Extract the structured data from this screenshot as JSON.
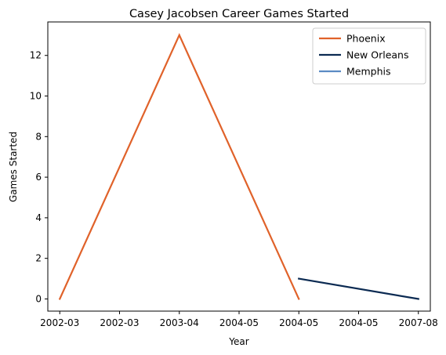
{
  "chart_data": {
    "type": "line",
    "title": "Casey Jacobsen Career Games Started",
    "xlabel": "Year",
    "ylabel": "Games Started",
    "x_tick_labels": [
      "2002-03",
      "2002-03",
      "2003-04",
      "2004-05",
      "2004-05",
      "2004-05",
      "2007-08"
    ],
    "x_range": [
      -0.2,
      6.2
    ],
    "y_range": [
      -0.6,
      13.65
    ],
    "y_ticks": [
      0,
      2,
      4,
      6,
      8,
      10,
      12
    ],
    "grid": false,
    "legend_placement": "top-right",
    "series": [
      {
        "name": "Phoenix",
        "color": "#e0622a",
        "points": [
          [
            0,
            0
          ],
          [
            2,
            13
          ],
          [
            4,
            0
          ]
        ]
      },
      {
        "name": "New Orleans",
        "color": "#0b2a52",
        "points": [
          [
            4,
            1
          ],
          [
            6,
            0
          ]
        ]
      },
      {
        "name": "Memphis",
        "color": "#5b8bc4",
        "points": []
      }
    ]
  }
}
